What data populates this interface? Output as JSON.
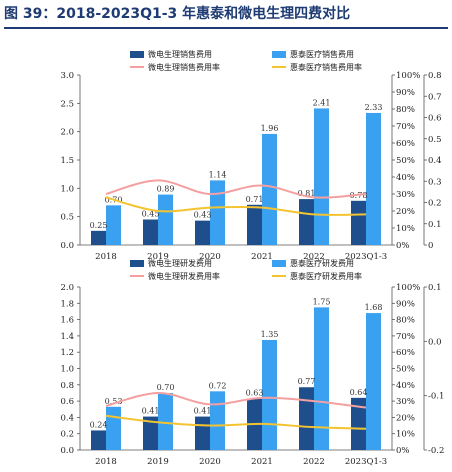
{
  "title": "图 39：2018-2023Q1-3 年惠泰和微电生理四费对比",
  "colors": {
    "dark_bar": "#1f4e8c",
    "light_bar": "#3aa0f0",
    "pink_line": "#f4a0a0",
    "yellow_line": "#f4c430",
    "title": "#1f3b73"
  },
  "chart_data": [
    {
      "type": "bar",
      "categories": [
        "2018",
        "2019",
        "2020",
        "2021",
        "2022",
        "2023Q1-3"
      ],
      "series": [
        {
          "name": "微电生理销售费用",
          "kind": "bar",
          "axis": "left",
          "values": [
            0.25,
            0.45,
            0.43,
            0.71,
            0.81,
            0.78
          ]
        },
        {
          "name": "惠泰医疗销售费用",
          "kind": "bar",
          "axis": "left",
          "values": [
            0.7,
            0.89,
            1.14,
            1.96,
            2.41,
            2.33
          ]
        },
        {
          "name": "微电生理销售费用率",
          "kind": "line",
          "axis": "right",
          "values": [
            30,
            38,
            30,
            35,
            28,
            30
          ]
        },
        {
          "name": "惠泰医疗销售费用率",
          "kind": "line",
          "axis": "right",
          "values": [
            28,
            20,
            22,
            22,
            18,
            18
          ]
        }
      ],
      "ylim": [
        0,
        3.0
      ],
      "yticks": [
        "0.0",
        "0.5",
        "1.0",
        "1.5",
        "2.0",
        "2.5",
        "3.0"
      ],
      "y2ticks": [
        "0%",
        "10%",
        "20%",
        "30%",
        "40%",
        "50%",
        "60%",
        "70%",
        "80%",
        "90%",
        "100%"
      ],
      "y3ticks": [
        "0",
        "0.1",
        "0.2",
        "0.3",
        "0.4",
        "0.5",
        "0.6",
        "0.7",
        "0.8"
      ],
      "legend": "top"
    },
    {
      "type": "bar",
      "categories": [
        "2018",
        "2019",
        "2020",
        "2021",
        "2022",
        "2023Q1-3"
      ],
      "series": [
        {
          "name": "微电生理研发费用",
          "kind": "bar",
          "axis": "left",
          "values": [
            0.24,
            0.41,
            0.41,
            0.63,
            0.77,
            0.64
          ]
        },
        {
          "name": "惠泰医疗研发费用",
          "kind": "bar",
          "axis": "left",
          "values": [
            0.53,
            0.7,
            0.72,
            1.35,
            1.75,
            1.68
          ]
        },
        {
          "name": "微电生理研发费用率",
          "kind": "line",
          "axis": "right",
          "values": [
            27,
            35,
            28,
            32,
            30,
            26
          ]
        },
        {
          "name": "惠泰医疗研发费用率",
          "kind": "line",
          "axis": "right",
          "values": [
            21,
            17,
            15,
            16,
            14,
            13
          ]
        }
      ],
      "ylim": [
        0,
        2.0
      ],
      "yticks": [
        "0.0",
        "0.2",
        "0.4",
        "0.6",
        "0.8",
        "1.0",
        "1.2",
        "1.4",
        "1.6",
        "1.8",
        "2.0"
      ],
      "y2ticks": [
        "0%",
        "10%",
        "20%",
        "30%",
        "40%",
        "50%",
        "60%",
        "70%",
        "80%",
        "90%",
        "100%"
      ],
      "y3ticks": [
        "-0.2",
        "-0.1",
        "0.0",
        "0.1"
      ],
      "legend": "top"
    }
  ]
}
